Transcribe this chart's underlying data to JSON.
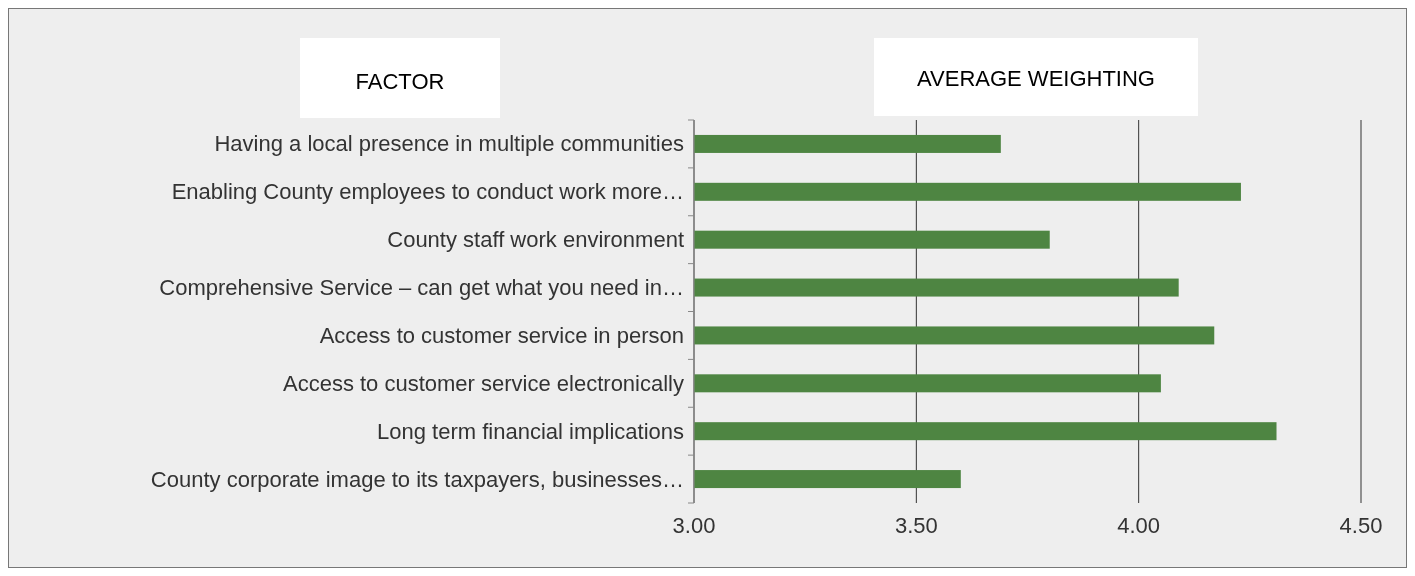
{
  "chart_data": {
    "type": "bar",
    "orientation": "horizontal",
    "ylabel": "FACTOR",
    "xlabel": "AVERAGE WEIGHTING",
    "categories": [
      "Having a local presence in multiple communities",
      "Enabling County employees to conduct work more…",
      "County staff work environment",
      "Comprehensive Service – can get what you need in…",
      "Access to customer service in person",
      "Access to customer service electronically",
      "Long term financial implications",
      "County corporate image to its taxpayers, businesses…"
    ],
    "values": [
      3.69,
      4.23,
      3.8,
      4.09,
      4.17,
      4.05,
      4.31,
      3.6
    ],
    "color": "#4e8542",
    "xlim": [
      3,
      4.5
    ],
    "xticks": [
      {
        "value": 3,
        "label": "3.00"
      },
      {
        "value": 3.5,
        "label": "3.50"
      },
      {
        "value": 4,
        "label": "4.00"
      },
      {
        "value": 4.5,
        "label": "4.50"
      }
    ],
    "grid": "x"
  }
}
